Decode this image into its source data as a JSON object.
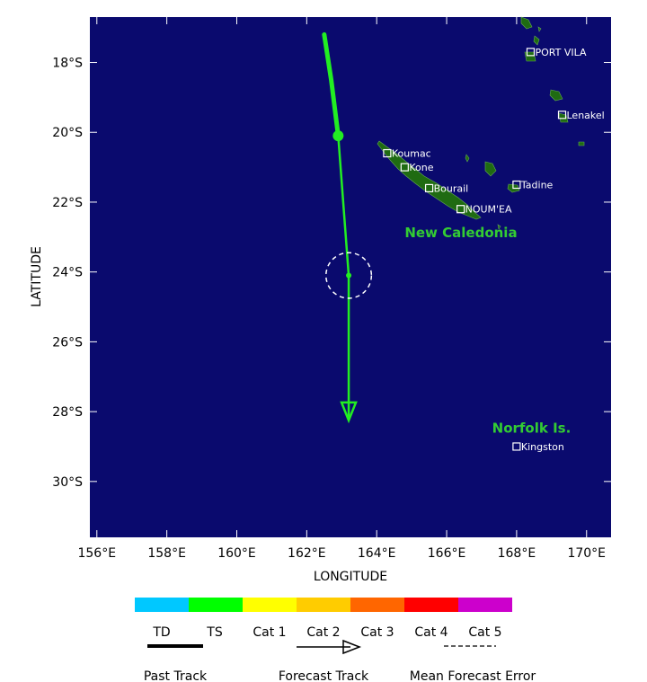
{
  "map": {
    "axes": {
      "x_label": "LONGITUDE",
      "y_label": "LATITUDE",
      "x_ticks": [
        {
          "lon": 156,
          "label": "156°E"
        },
        {
          "lon": 158,
          "label": "158°E"
        },
        {
          "lon": 160,
          "label": "160°E"
        },
        {
          "lon": 162,
          "label": "162°E"
        },
        {
          "lon": 164,
          "label": "164°E"
        },
        {
          "lon": 166,
          "label": "166°E"
        },
        {
          "lon": 168,
          "label": "168°E"
        },
        {
          "lon": 170,
          "label": "170°E"
        }
      ],
      "y_ticks": [
        {
          "lat": -18,
          "label": "18°S"
        },
        {
          "lat": -20,
          "label": "20°S"
        },
        {
          "lat": -22,
          "label": "22°S"
        },
        {
          "lat": -24,
          "label": "24°S"
        },
        {
          "lat": -26,
          "label": "26°S"
        },
        {
          "lat": -28,
          "label": "28°S"
        },
        {
          "lat": -30,
          "label": "30°S"
        }
      ],
      "lon_range": [
        155.8,
        170.7
      ],
      "lat_range": [
        -31.6,
        -16.7
      ]
    },
    "colors": {
      "ocean": "#0a0a6e",
      "land": "#1f6b12",
      "track_ts": "#22ee22",
      "place_marker": "#ffffff",
      "region_label": "#33cc33"
    },
    "regions": [
      {
        "id": "new-caledonia-label",
        "name": "New Caledonia",
        "lon": 164.8,
        "lat": -23.0
      },
      {
        "id": "norfolk-label",
        "name": "Norfolk Is.",
        "lon": 167.3,
        "lat": -28.6
      }
    ],
    "places": [
      {
        "id": "port-vila",
        "name": "PORT VILA",
        "lon": 168.4,
        "lat": -17.7
      },
      {
        "id": "lenakel",
        "name": "Lenakel",
        "lon": 169.3,
        "lat": -19.5
      },
      {
        "id": "koumac",
        "name": "Koumac",
        "lon": 164.3,
        "lat": -20.6
      },
      {
        "id": "kone",
        "name": "Kone",
        "lon": 164.8,
        "lat": -21.0
      },
      {
        "id": "bourail",
        "name": "Bourail",
        "lon": 165.5,
        "lat": -21.6
      },
      {
        "id": "tadine",
        "name": "Tadine",
        "lon": 168.0,
        "lat": -21.5
      },
      {
        "id": "noumea",
        "name": "NOUM'EA",
        "lon": 166.4,
        "lat": -22.2
      },
      {
        "id": "kingston",
        "name": "Kingston",
        "lon": 168.0,
        "lat": -29.0
      }
    ],
    "past_track": [
      {
        "lon": 162.5,
        "lat": -17.2
      },
      {
        "lon": 162.7,
        "lat": -18.5
      },
      {
        "lon": 162.9,
        "lat": -20.1
      }
    ],
    "forecast_track": [
      {
        "lon": 162.9,
        "lat": -20.1
      },
      {
        "lon": 163.2,
        "lat": -24.1
      },
      {
        "lon": 163.2,
        "lat": -28.2
      }
    ],
    "current_position": {
      "lon": 162.9,
      "lat": -20.1
    },
    "forecast_error_center": {
      "lon": 163.2,
      "lat": -24.1,
      "radius_deg": 0.65
    }
  },
  "legend": {
    "scale": [
      {
        "label": "TD",
        "color": "#00c8ff"
      },
      {
        "label": "TS",
        "color": "#00ff00"
      },
      {
        "label": "Cat 1",
        "color": "#ffff00"
      },
      {
        "label": "Cat 2",
        "color": "#ffcc00"
      },
      {
        "label": "Cat 3",
        "color": "#ff6600"
      },
      {
        "label": "Cat 4",
        "color": "#ff0000"
      },
      {
        "label": "Cat 5",
        "color": "#cc00cc"
      }
    ],
    "past_track_label": "Past Track",
    "forecast_track_label": "Forecast Track",
    "mean_error_label": "Mean Forecast Error"
  }
}
